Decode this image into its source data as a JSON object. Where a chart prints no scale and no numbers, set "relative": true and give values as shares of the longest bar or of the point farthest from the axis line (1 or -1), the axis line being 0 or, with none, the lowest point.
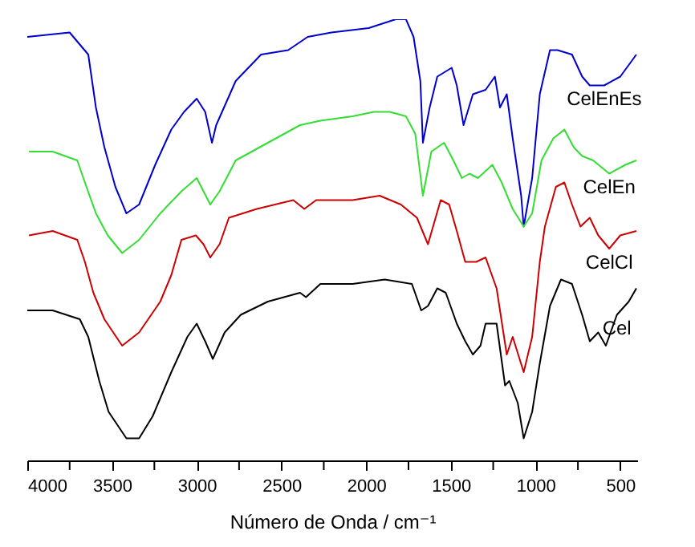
{
  "chart_data": {
    "type": "line",
    "xlabel": "Número de Onda / cm⁻¹",
    "relative": true,
    "xlim": [
      4000,
      400
    ],
    "xticks": [
      4000,
      {
        "value": 3750,
        "label": null
      },
      3500,
      {
        "value": 3250,
        "label": null
      },
      3000,
      {
        "value": 2750,
        "label": null
      },
      2500,
      {
        "value": 2250,
        "label": null
      },
      2000,
      {
        "value": 1750,
        "label": null
      },
      1500,
      {
        "value": 1250,
        "label": null
      },
      1000,
      {
        "value": 750,
        "label": null
      },
      500
    ],
    "grid": false,
    "line_style": "solid",
    "series": [
      {
        "name": "CelEnEs",
        "color": "#0000cc",
        "x": [
          4000,
          3750,
          3640,
          3595,
          3545,
          3480,
          3415,
          3340,
          3245,
          3150,
          3075,
          3000,
          2950,
          2910,
          2885,
          2770,
          2620,
          2460,
          2345,
          2205,
          1985,
          1825,
          1765,
          1720,
          1680,
          1665,
          1625,
          1580,
          1495,
          1465,
          1425,
          1370,
          1295,
          1240,
          1210,
          1170,
          1135,
          1085,
          1070,
          1020,
          975,
          915,
          870,
          785,
          725,
          680,
          595,
          500,
          405
        ],
        "values": [
          0.96,
          0.97,
          0.92,
          0.8,
          0.71,
          0.62,
          0.56,
          0.58,
          0.67,
          0.75,
          0.79,
          0.82,
          0.79,
          0.72,
          0.76,
          0.86,
          0.92,
          0.93,
          0.96,
          0.97,
          0.98,
          1.0,
          1.0,
          0.96,
          0.86,
          0.72,
          0.8,
          0.87,
          0.89,
          0.85,
          0.76,
          0.83,
          0.84,
          0.87,
          0.8,
          0.83,
          0.73,
          0.6,
          0.53,
          0.64,
          0.83,
          0.93,
          0.93,
          0.92,
          0.87,
          0.85,
          0.85,
          0.87,
          0.92
        ]
      },
      {
        "name": "CelEn",
        "color": "#33dd33",
        "x": [
          3990,
          3850,
          3705,
          3660,
          3595,
          3525,
          3440,
          3340,
          3215,
          3090,
          3000,
          2960,
          2920,
          2865,
          2770,
          2580,
          2390,
          2270,
          2080,
          1955,
          1860,
          1765,
          1710,
          1665,
          1615,
          1540,
          1485,
          1435,
          1390,
          1340,
          1255,
          1200,
          1135,
          1070,
          1020,
          965,
          895,
          830,
          775,
          725,
          660,
          565,
          470,
          405
        ],
        "values": [
          0.7,
          0.7,
          0.68,
          0.63,
          0.56,
          0.51,
          0.47,
          0.5,
          0.56,
          0.61,
          0.64,
          0.61,
          0.58,
          0.61,
          0.68,
          0.72,
          0.76,
          0.77,
          0.78,
          0.79,
          0.79,
          0.78,
          0.74,
          0.6,
          0.7,
          0.72,
          0.68,
          0.64,
          0.65,
          0.64,
          0.67,
          0.63,
          0.57,
          0.53,
          0.56,
          0.68,
          0.73,
          0.75,
          0.71,
          0.69,
          0.68,
          0.65,
          0.67,
          0.68
        ]
      },
      {
        "name": "CelCl",
        "color": "#cc0000",
        "x": [
          3990,
          3850,
          3705,
          3660,
          3610,
          3545,
          3440,
          3340,
          3215,
          3150,
          3090,
          3005,
          2960,
          2920,
          2865,
          2810,
          2645,
          2430,
          2365,
          2295,
          2080,
          1920,
          1795,
          1700,
          1635,
          1560,
          1510,
          1465,
          1415,
          1350,
          1295,
          1230,
          1170,
          1135,
          1070,
          1020,
          975,
          945,
          880,
          830,
          785,
          735,
          680,
          630,
          565,
          500,
          405
        ],
        "values": [
          0.51,
          0.52,
          0.5,
          0.45,
          0.38,
          0.32,
          0.26,
          0.29,
          0.36,
          0.42,
          0.5,
          0.51,
          0.49,
          0.46,
          0.49,
          0.55,
          0.57,
          0.59,
          0.57,
          0.59,
          0.59,
          0.6,
          0.58,
          0.55,
          0.49,
          0.59,
          0.58,
          0.52,
          0.45,
          0.45,
          0.46,
          0.39,
          0.24,
          0.28,
          0.2,
          0.28,
          0.45,
          0.53,
          0.62,
          0.63,
          0.58,
          0.53,
          0.55,
          0.51,
          0.48,
          0.51,
          0.52
        ]
      },
      {
        "name": "Cel",
        "color": "#000000",
        "x": [
          4000,
          3850,
          3690,
          3640,
          3575,
          3520,
          3415,
          3340,
          3260,
          3150,
          3055,
          3000,
          2950,
          2905,
          2835,
          2740,
          2580,
          2390,
          2355,
          2270,
          2080,
          1890,
          1730,
          1675,
          1635,
          1580,
          1530,
          1465,
          1415,
          1370,
          1325,
          1295,
          1230,
          1180,
          1155,
          1105,
          1070,
          1020,
          975,
          915,
          850,
          785,
          725,
          680,
          630,
          585,
          520,
          450,
          405
        ],
        "values": [
          0.34,
          0.34,
          0.32,
          0.28,
          0.18,
          0.11,
          0.05,
          0.05,
          0.1,
          0.2,
          0.28,
          0.31,
          0.27,
          0.23,
          0.29,
          0.33,
          0.36,
          0.38,
          0.37,
          0.4,
          0.4,
          0.41,
          0.4,
          0.34,
          0.35,
          0.39,
          0.38,
          0.31,
          0.27,
          0.24,
          0.26,
          0.31,
          0.31,
          0.17,
          0.18,
          0.13,
          0.05,
          0.11,
          0.22,
          0.35,
          0.41,
          0.4,
          0.33,
          0.27,
          0.29,
          0.26,
          0.33,
          0.36,
          0.39
        ]
      }
    ]
  }
}
